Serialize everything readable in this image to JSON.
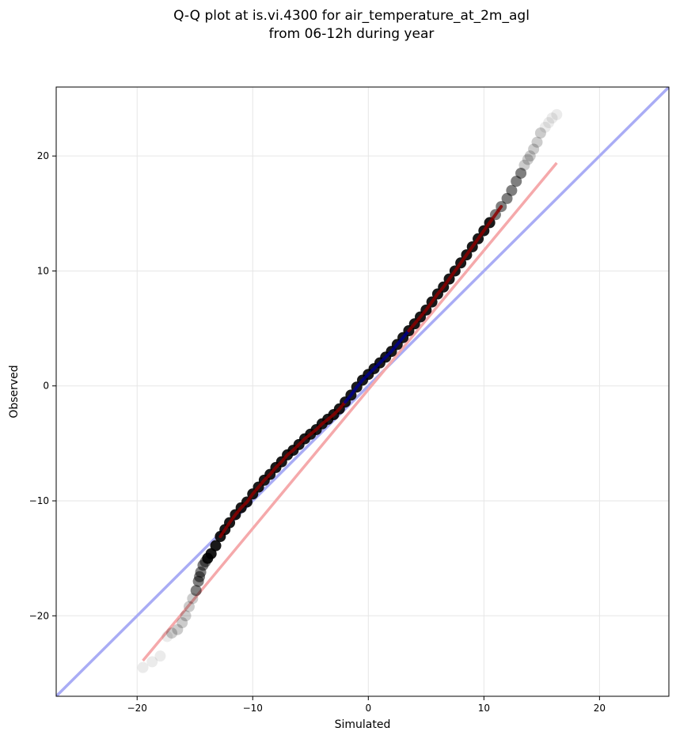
{
  "chart_data": {
    "type": "scatter",
    "title_lines": [
      "Q-Q plot at is.vi.4300 for air_temperature_at_2m_agl",
      "from 06-12h during year"
    ],
    "xlabel": "Simulated",
    "ylabel": "Observed",
    "xlim": [
      -27,
      26
    ],
    "ylim": [
      -27,
      26
    ],
    "xticks": [
      -20,
      -10,
      0,
      10,
      20
    ],
    "yticks": [
      -20,
      -10,
      0,
      10,
      20
    ],
    "xtick_labels": [
      "−20",
      "−10",
      "0",
      "10",
      "20"
    ],
    "ytick_labels": [
      "−20",
      "−10",
      "0",
      "10",
      "20"
    ],
    "grid": true,
    "legend": "none",
    "colors": {
      "points": "#000000",
      "identity_line": "#a9acf5",
      "fit_line": "#f5a9ab",
      "center_highlight": "#00008b",
      "dense_highlight": "#8b0000"
    },
    "reference_lines": [
      {
        "kind": "identity",
        "x": [
          -27,
          26
        ],
        "y": [
          -27,
          26
        ]
      },
      {
        "kind": "fit",
        "x": [
          -19.5,
          16.3
        ],
        "y": [
          -23.9,
          19.4
        ]
      }
    ],
    "series": [
      {
        "x": [
          -19.5,
          -18.7,
          -18.0,
          -17.4,
          -17.0,
          -16.5,
          -16.1,
          -15.8,
          -15.5,
          -15.2,
          -14.9,
          -14.7,
          -14.6,
          -14.5,
          -14.3,
          -14.1,
          -13.9,
          -13.6,
          -13.2,
          -12.8,
          -12.4,
          -12.0,
          -11.5,
          -11.0,
          -10.5,
          -10.0,
          -9.5,
          -9.0,
          -8.5,
          -8.0,
          -7.5,
          -7.0,
          -6.5,
          -6.0,
          -5.5,
          -5.0,
          -4.5,
          -4.0,
          -3.5,
          -3.0,
          -2.5,
          -2.0,
          -1.5,
          -1.0,
          -0.5,
          0.0,
          0.5,
          1.0,
          1.5,
          2.0,
          2.5,
          3.0,
          3.5,
          4.0,
          4.5,
          5.0,
          5.5,
          6.0,
          6.5,
          7.0,
          7.5,
          8.0,
          8.5,
          9.0,
          9.5,
          10.0,
          10.5,
          11.0,
          11.5,
          12.0,
          12.4,
          12.8,
          13.2,
          13.5,
          13.8,
          14.0,
          14.3,
          14.6,
          14.9,
          15.3,
          15.6,
          15.9,
          16.3
        ],
        "y": [
          -24.5,
          -24.0,
          -23.5,
          -21.8,
          -21.5,
          -21.2,
          -20.6,
          -20.0,
          -19.2,
          -18.5,
          -17.8,
          -17.0,
          -16.6,
          -16.2,
          -15.6,
          -15.3,
          -15.0,
          -14.6,
          -13.9,
          -13.1,
          -12.5,
          -11.9,
          -11.2,
          -10.6,
          -10.1,
          -9.4,
          -8.8,
          -8.2,
          -7.7,
          -7.1,
          -6.6,
          -6.0,
          -5.6,
          -5.1,
          -4.6,
          -4.2,
          -3.8,
          -3.3,
          -2.9,
          -2.5,
          -2.0,
          -1.4,
          -0.8,
          -0.1,
          0.5,
          1.0,
          1.5,
          2.0,
          2.5,
          3.0,
          3.6,
          4.2,
          4.8,
          5.4,
          6.0,
          6.6,
          7.3,
          8.0,
          8.6,
          9.3,
          10.0,
          10.7,
          11.4,
          12.1,
          12.8,
          13.5,
          14.2,
          14.9,
          15.6,
          16.3,
          17.0,
          17.8,
          18.5,
          19.2,
          19.7,
          20.0,
          20.6,
          21.2,
          22.0,
          22.5,
          22.9,
          23.3,
          23.6
        ]
      }
    ]
  }
}
